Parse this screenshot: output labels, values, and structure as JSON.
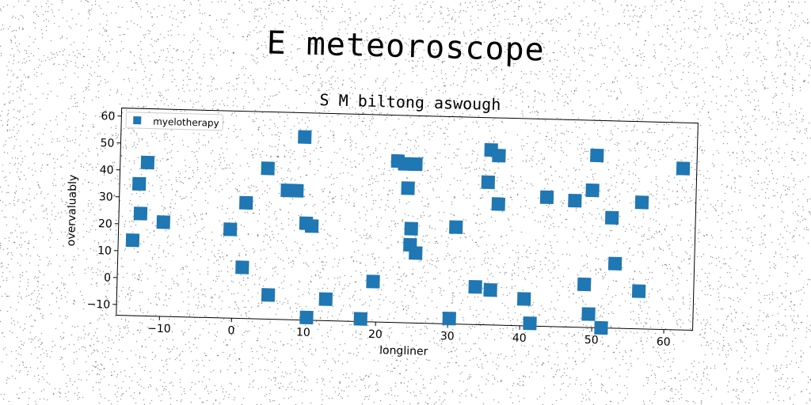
{
  "title": "E meteoroscope",
  "chart_data": {
    "type": "scatter",
    "subtitle": "S M biltong aswough",
    "xlabel": "longliner",
    "ylabel": "overvaluably",
    "xlim": [
      -16,
      64
    ],
    "ylim": [
      -14,
      63
    ],
    "xticks": [
      -10,
      0,
      10,
      20,
      30,
      40,
      50,
      60
    ],
    "yticks": [
      -10,
      0,
      10,
      20,
      30,
      40,
      50,
      60
    ],
    "grid": false,
    "legend_position": "top-left",
    "series": [
      {
        "name": "myelotherapy",
        "color": "#1f77b4",
        "marker": "square",
        "points": [
          [
            -12.2,
            43
          ],
          [
            -13.3,
            35
          ],
          [
            -13,
            24
          ],
          [
            -14,
            14
          ],
          [
            -9.8,
            21
          ],
          [
            -0.5,
            19
          ],
          [
            1.6,
            29
          ],
          [
            1.3,
            5
          ],
          [
            4.5,
            42
          ],
          [
            5,
            -5
          ],
          [
            7.3,
            34
          ],
          [
            8.6,
            34
          ],
          [
            9.5,
            54
          ],
          [
            10,
            22
          ],
          [
            10.8,
            21
          ],
          [
            10.4,
            -13
          ],
          [
            13,
            -6
          ],
          [
            17.9,
            -13
          ],
          [
            19.5,
            1
          ],
          [
            22.5,
            46
          ],
          [
            23.5,
            45
          ],
          [
            25,
            45
          ],
          [
            24,
            36
          ],
          [
            24.6,
            21
          ],
          [
            24.5,
            15
          ],
          [
            25.3,
            12
          ],
          [
            30.8,
            22
          ],
          [
            30.2,
            -12
          ],
          [
            33.7,
            0
          ],
          [
            35.1,
            39
          ],
          [
            35.4,
            51
          ],
          [
            36.5,
            49
          ],
          [
            36.6,
            31
          ],
          [
            35.8,
            -1
          ],
          [
            40.5,
            -4
          ],
          [
            41.4,
            -13
          ],
          [
            43.3,
            34
          ],
          [
            47.2,
            33
          ],
          [
            48.8,
            2
          ],
          [
            49.6,
            37
          ],
          [
            50.1,
            50
          ],
          [
            49.5,
            -9
          ],
          [
            51.3,
            -14
          ],
          [
            52.4,
            27
          ],
          [
            53,
            10
          ],
          [
            56.5,
            33
          ],
          [
            56.4,
            0
          ],
          [
            62.1,
            46
          ]
        ]
      }
    ]
  }
}
